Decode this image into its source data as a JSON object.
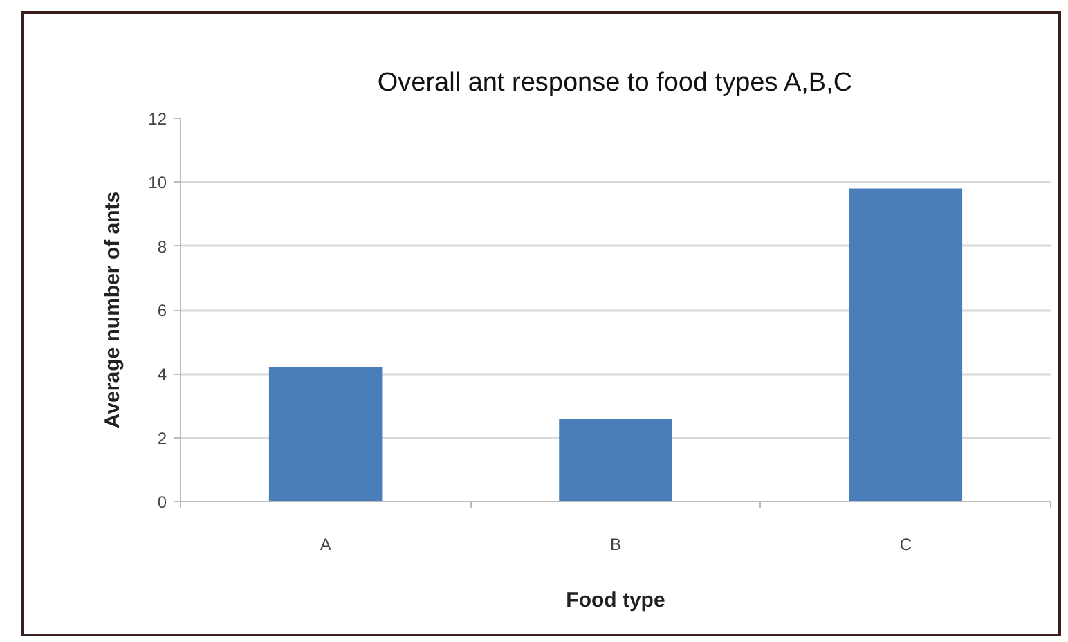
{
  "chart_data": {
    "type": "bar",
    "title": "Overall ant response to food types A,B,C",
    "xlabel": "Food type",
    "ylabel": "Average number of ants",
    "categories": [
      "A",
      "B",
      "C"
    ],
    "values": [
      4.2,
      2.6,
      9.8
    ],
    "color": "#4a7ebb",
    "ylim": [
      0,
      12
    ],
    "yticks": [
      0,
      2,
      4,
      6,
      8,
      10,
      12
    ],
    "grid": "y"
  }
}
